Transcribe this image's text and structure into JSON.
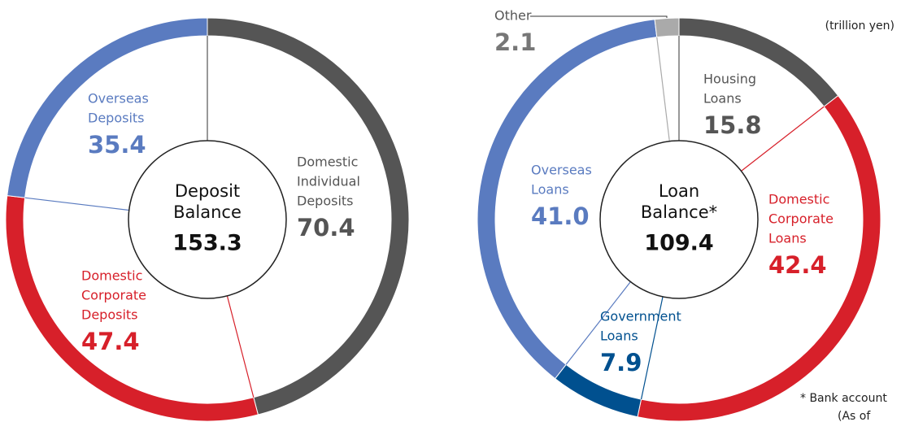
{
  "unit_note": "(trillion yen)",
  "footnote": [
    "* Bank account",
    "(As of"
  ],
  "chart_data": [
    {
      "type": "pie",
      "center_label": [
        "Deposit",
        "Balance"
      ],
      "total": 153.3,
      "categories": [
        [
          "Domestic",
          "Individual",
          "Deposits"
        ],
        [
          "Domestic",
          "Corporate",
          "Deposits"
        ],
        [
          "Overseas",
          "Deposits"
        ]
      ],
      "values": [
        70.4,
        47.4,
        35.4
      ],
      "colors": [
        "#555555",
        "#d7202a",
        "#5a7bc0"
      ]
    },
    {
      "type": "pie",
      "center_label": [
        "Loan",
        "Balance*"
      ],
      "total": 109.4,
      "categories": [
        [
          "Housing",
          "Loans"
        ],
        [
          "Domestic",
          "Corporate",
          "Loans"
        ],
        [
          "Government",
          "Loans"
        ],
        [
          "Overseas",
          "Loans"
        ],
        [
          "Other"
        ]
      ],
      "values": [
        15.8,
        42.4,
        7.9,
        41.0,
        2.1
      ],
      "value_labels": [
        "15.8",
        "42.4",
        "7.9",
        "41.0",
        "2.1"
      ],
      "colors": [
        "#555555",
        "#d7202a",
        "#00508f",
        "#5a7bc0",
        "#aaaaaa"
      ]
    }
  ]
}
